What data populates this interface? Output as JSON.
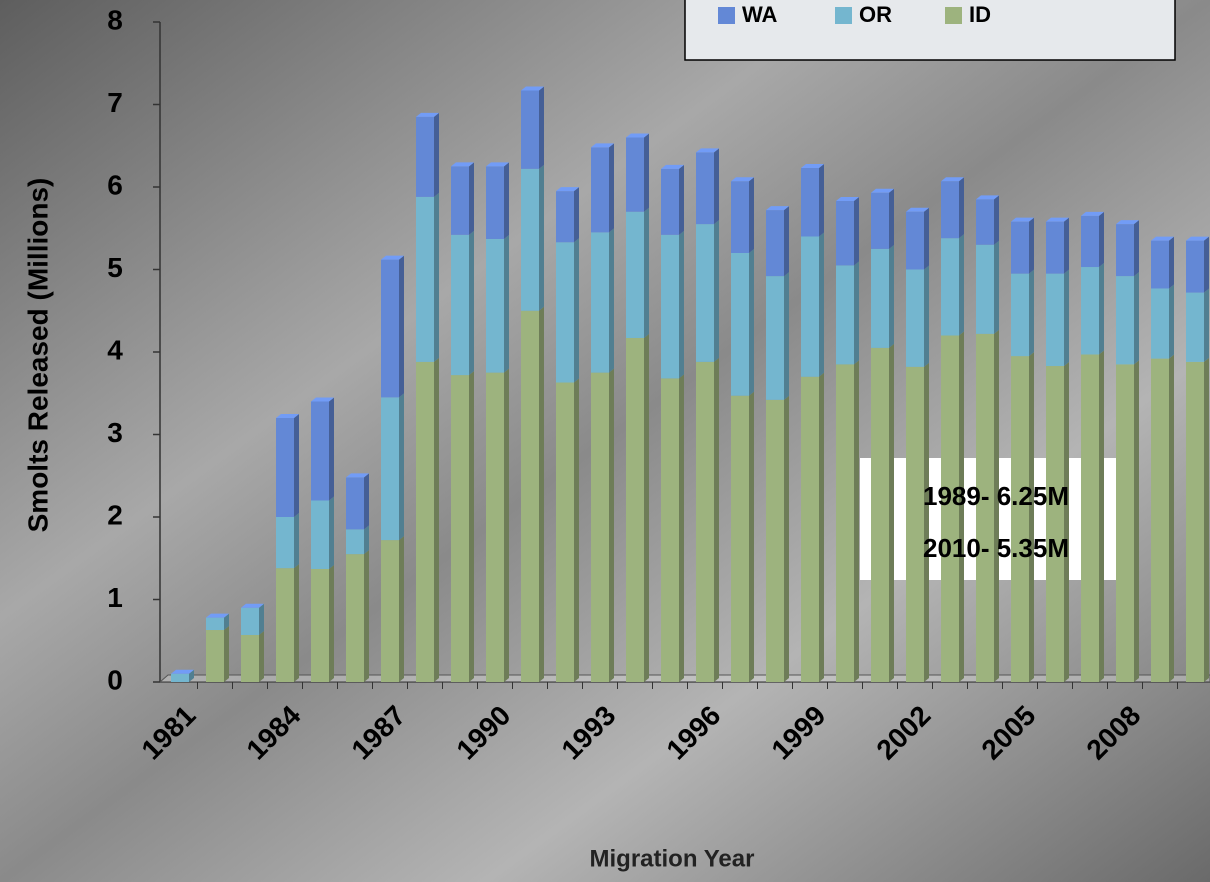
{
  "chart_data": {
    "type": "stacked_bar",
    "x_label": "Migration Year",
    "y_label": "Smolts Released (Millions)",
    "categories": [
      "1981",
      null,
      null,
      "1984",
      null,
      null,
      "1987",
      null,
      null,
      "1990",
      null,
      null,
      "1993",
      null,
      null,
      "1996",
      null,
      null,
      "1999",
      null,
      null,
      "2002",
      null,
      null,
      "2005",
      null,
      null,
      "2008",
      null,
      null
    ],
    "series": [
      {
        "name": "WA",
        "color": "#6388d6",
        "values": [
          0,
          0,
          0,
          1.2,
          1.2,
          0.63,
          1.67,
          0.97,
          0.83,
          0.88,
          0.95,
          0.62,
          1.03,
          0.9,
          0.8,
          0.87,
          0.87,
          0.8,
          0.83,
          0.78,
          0.68,
          0.7,
          0.69,
          0.55,
          0.63,
          0.63,
          0.62,
          0.63,
          0.58,
          0.63
        ]
      },
      {
        "name": "OR",
        "color": "#74b6cf",
        "values": [
          0.1,
          0.15,
          0.33,
          0.62,
          0.83,
          0.3,
          1.73,
          2.0,
          1.7,
          1.62,
          1.72,
          1.7,
          1.7,
          1.53,
          1.74,
          1.67,
          1.73,
          1.5,
          1.7,
          1.2,
          1.2,
          1.18,
          1.18,
          1.08,
          1.0,
          1.12,
          1.06,
          1.07,
          0.85,
          0.84
        ]
      },
      {
        "name": "ID",
        "color": "#9db37e",
        "values": [
          0,
          0.63,
          0.57,
          1.38,
          1.37,
          1.55,
          1.72,
          3.88,
          3.72,
          3.75,
          4.5,
          3.63,
          3.75,
          4.17,
          3.68,
          3.88,
          3.47,
          3.42,
          3.7,
          3.85,
          4.05,
          3.82,
          4.2,
          4.22,
          3.95,
          3.83,
          3.97,
          3.85,
          3.92,
          3.88
        ]
      }
    ],
    "ylim": [
      0,
      8
    ],
    "yticks": [
      0,
      1,
      2,
      3,
      4,
      5,
      6,
      7,
      8
    ],
    "annotations": [
      "1989- 6.25M",
      "2010- 5.35M"
    ]
  }
}
